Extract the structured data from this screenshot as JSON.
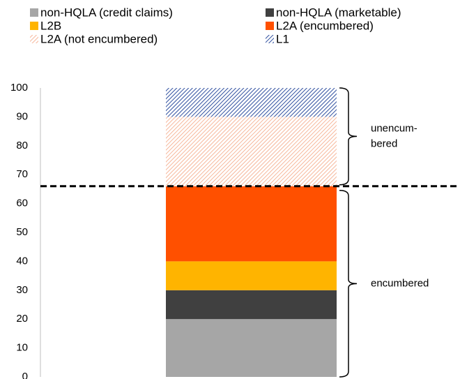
{
  "chart_data": {
    "type": "stacked_bar",
    "categories": [
      null
    ],
    "series": [
      {
        "name": "non-HQLA (credit claims)",
        "color": "#a6a6a6",
        "values": [
          20
        ]
      },
      {
        "name": "non-HQLA (marketable)",
        "color": "#404040",
        "values": [
          10
        ]
      },
      {
        "name": "L2B",
        "color": "#ffb400",
        "values": [
          10
        ]
      },
      {
        "name": "L2A (encumbered)",
        "color": "#ff5000",
        "values": [
          26
        ]
      },
      {
        "name": "L2A (not encumbered)",
        "color": "#f4a582",
        "pattern": "hatch",
        "values": [
          24
        ]
      },
      {
        "name": "L1",
        "color": "#2f4f9f",
        "pattern": "hatch",
        "values": [
          10
        ]
      }
    ],
    "ylim": [
      0,
      100
    ],
    "yticks": [
      0,
      10,
      20,
      30,
      40,
      50,
      60,
      70,
      80,
      90,
      100
    ],
    "grid": false,
    "reference_line": 66,
    "annotations": [
      {
        "lines": [
          "unencum-",
          "bered"
        ]
      },
      {
        "lines": [
          "encumbered"
        ]
      }
    ]
  }
}
